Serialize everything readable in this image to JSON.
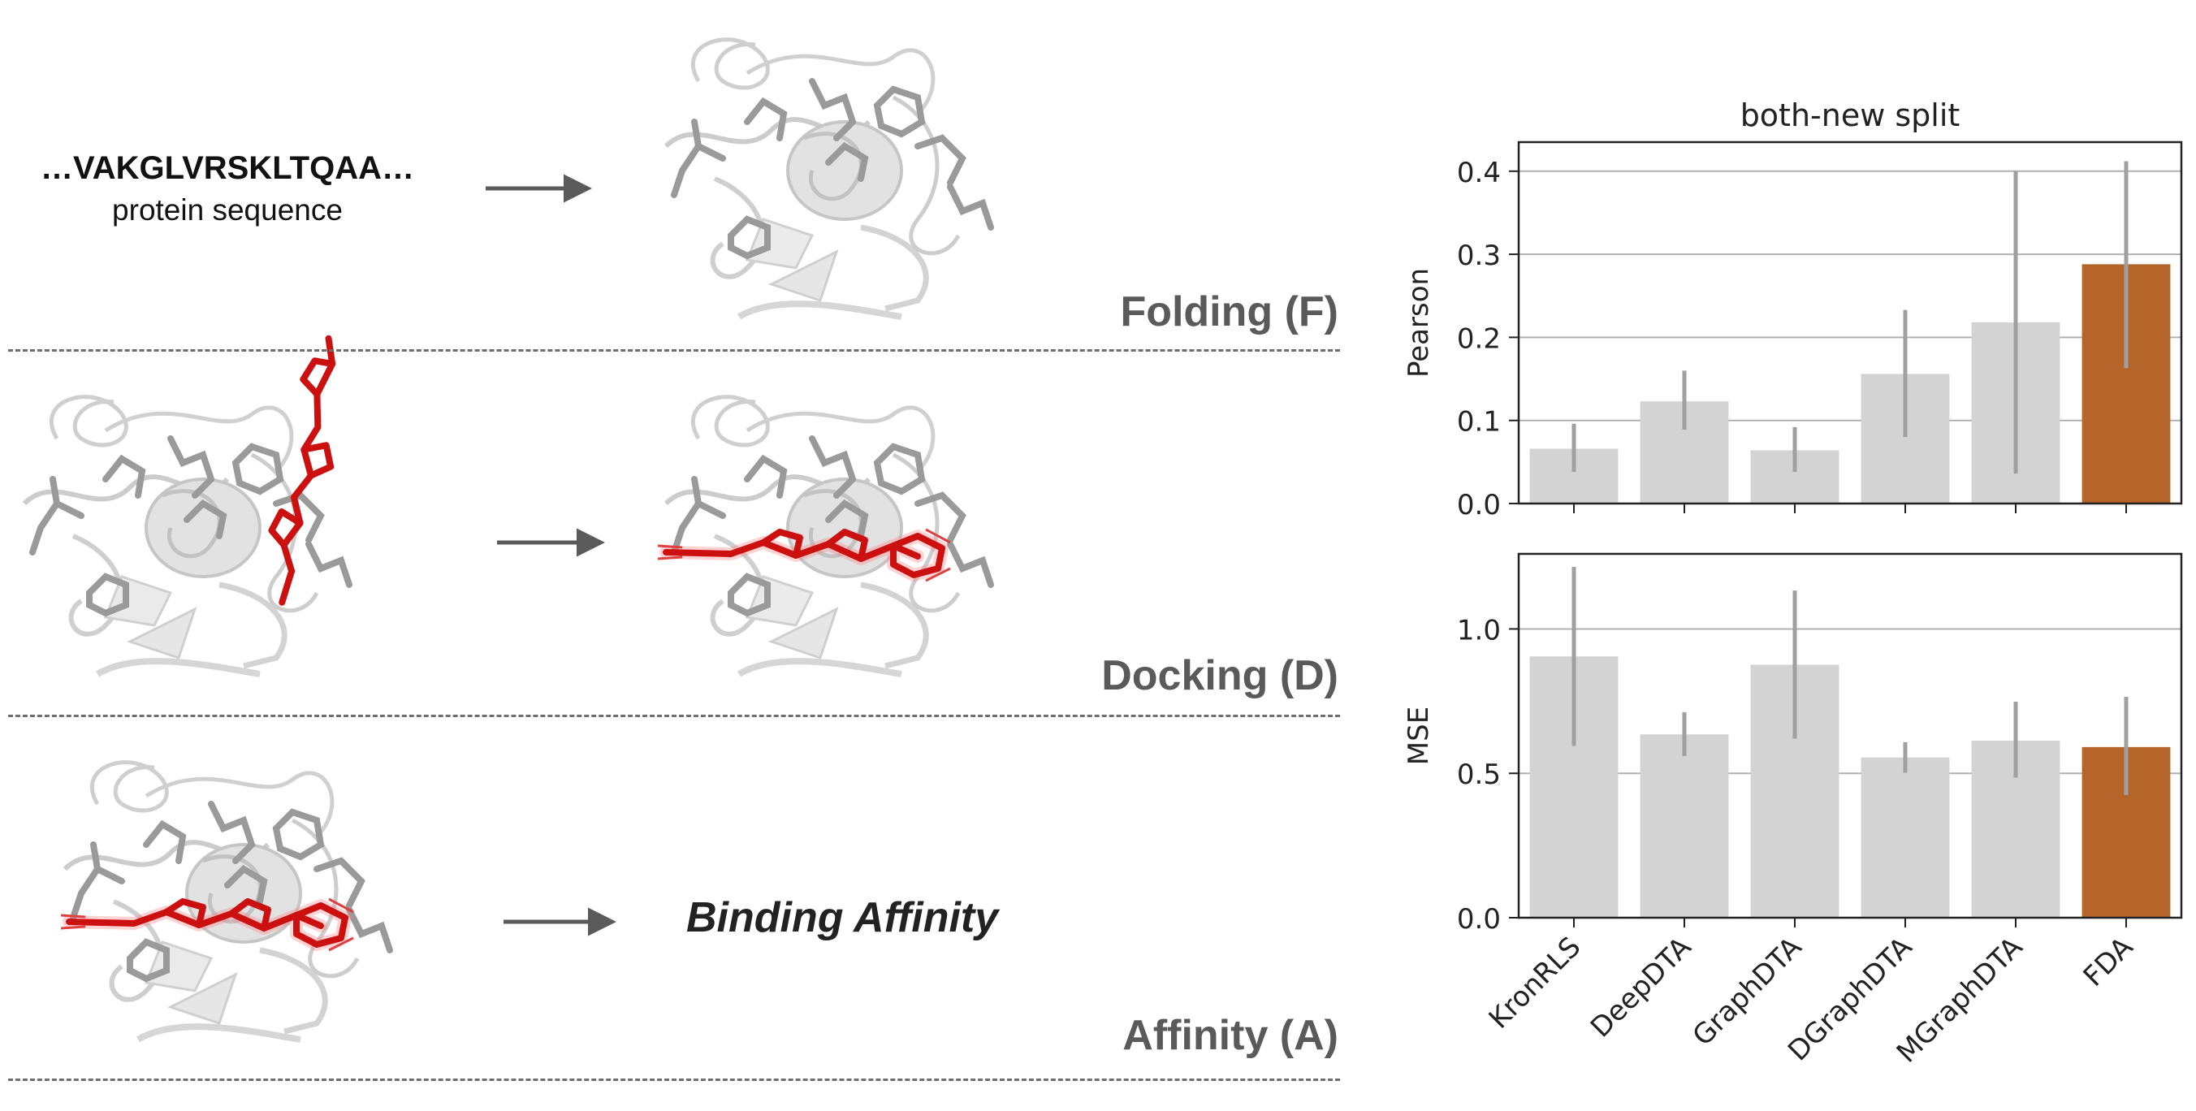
{
  "left_panel": {
    "sequence": "…VAKGLVRSKLTQAA…",
    "sequence_label": "protein sequence",
    "binding_label": "Binding Affinity",
    "stages": [
      {
        "label": "Folding (F)"
      },
      {
        "label": "Docking (D)"
      },
      {
        "label": "Affinity (A)"
      }
    ],
    "colors": {
      "protein": "#c8c8c8",
      "sticks": "#9a9a9a",
      "ligand": "#cc1010",
      "arrow": "#5a5a5a"
    }
  },
  "chart_data": [
    {
      "type": "bar",
      "title": "both-new split",
      "ylabel": "Pearson",
      "xlabel": "",
      "categories": [
        "KronRLS",
        "DeepDTA",
        "GraphDTA",
        "DGraphDTA",
        "MGraphDTA",
        "FDA"
      ],
      "values": [
        0.066,
        0.123,
        0.064,
        0.156,
        0.218,
        0.288
      ],
      "error_low": [
        0.038,
        0.089,
        0.038,
        0.08,
        0.036,
        0.163
      ],
      "error_high": [
        0.096,
        0.16,
        0.092,
        0.233,
        0.4,
        0.412
      ],
      "ylim": [
        0,
        0.435
      ],
      "yticks": [
        "0.0",
        "0.1",
        "0.2",
        "0.3",
        "0.4"
      ],
      "ytick_values": [
        0,
        0.1,
        0.2,
        0.3,
        0.4
      ],
      "grid": "horizontal",
      "colors": {
        "default": "#d3d3d3",
        "highlight": "#b5652a",
        "error": "#a0a0a0"
      },
      "highlight_index": 5
    },
    {
      "type": "bar",
      "title": "",
      "ylabel": "MSE",
      "xlabel": "",
      "categories": [
        "KronRLS",
        "DeepDTA",
        "GraphDTA",
        "DGraphDTA",
        "MGraphDTA",
        "FDA"
      ],
      "values": [
        0.905,
        0.635,
        0.876,
        0.555,
        0.613,
        0.591
      ],
      "error_low": [
        0.595,
        0.56,
        0.62,
        0.502,
        0.485,
        0.425
      ],
      "error_high": [
        1.215,
        0.712,
        1.133,
        0.608,
        0.748,
        0.765
      ],
      "ylim": [
        0,
        1.26
      ],
      "yticks": [
        "0.0",
        "0.5",
        "1.0"
      ],
      "ytick_values": [
        0,
        0.5,
        1.0
      ],
      "grid": "horizontal",
      "colors": {
        "default": "#d3d3d3",
        "highlight": "#b5652a",
        "error": "#a0a0a0"
      },
      "highlight_index": 5
    }
  ]
}
